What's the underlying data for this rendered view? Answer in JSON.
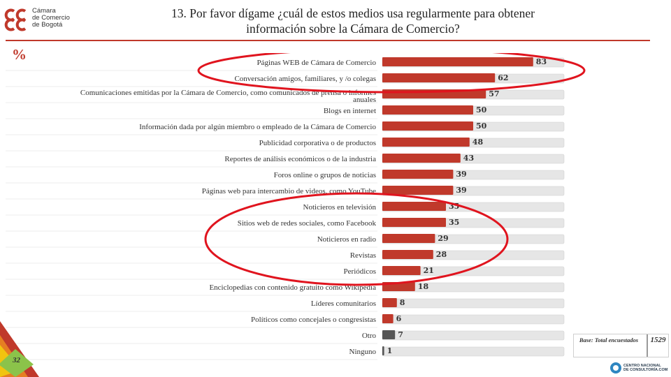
{
  "logo": {
    "lines": [
      "Cámara",
      "de Comercio",
      "de Bogotá"
    ],
    "color": "#c0392b"
  },
  "header": {
    "title_line1": "13. Por favor dígame ¿cuál de estos medios usa regularmente para obtener",
    "title_line2": "información sobre la Cámara de Comercio?",
    "percent_label": "%"
  },
  "chart_data": {
    "type": "bar",
    "orientation": "horizontal",
    "xlim": [
      0,
      100
    ],
    "grid": false,
    "categories": [
      "Páginas WEB de Cámara de Comercio",
      "Conversación amigos, familiares, y /o colegas",
      "Comunicaciones emitidas por la Cámara de Comercio, como comunicados de prensa o informes anuales",
      "Blogs en internet",
      "Información dada por algún miembro o empleado de la Cámara de Comercio",
      "Publicidad corporativa o de productos",
      "Reportes de análisis económicos o de la industria",
      "Foros online o grupos de noticias",
      "Páginas web para intercambio de videos, como YouTube",
      "Noticieros en televisión",
      "Sitios web de redes sociales, como Facebook",
      "Noticieros en radio",
      "Revistas",
      "Periódicos",
      "Enciclopedias con contenido gratuito como Wikipedía",
      "Líderes comunitarios",
      "Políticos como concejales o congresistas",
      "Otro",
      "Ninguno"
    ],
    "values": [
      83,
      62,
      57,
      50,
      50,
      48,
      43,
      39,
      39,
      35,
      35,
      29,
      28,
      21,
      18,
      8,
      6,
      7,
      1
    ],
    "bar_colors": [
      "#c0392b",
      "#c0392b",
      "#c0392b",
      "#c0392b",
      "#c0392b",
      "#c0392b",
      "#c0392b",
      "#c0392b",
      "#c0392b",
      "#c0392b",
      "#c0392b",
      "#c0392b",
      "#c0392b",
      "#c0392b",
      "#c0392b",
      "#c0392b",
      "#c0392b",
      "#555555",
      "#555555"
    ],
    "track_color": "#e6e6e6",
    "highlight_color": "#e0141e",
    "highlight_groups": [
      {
        "from_category": 0,
        "to_category": 1
      },
      {
        "from_category": 9,
        "to_category": 13
      }
    ]
  },
  "base": {
    "label": "Base: Total encuestados",
    "value": "1529"
  },
  "footer": {
    "page_number": "32",
    "cnc_line1": "CENTRO NACIONAL",
    "cnc_line2": "DE CONSULTORÍA.COM"
  }
}
